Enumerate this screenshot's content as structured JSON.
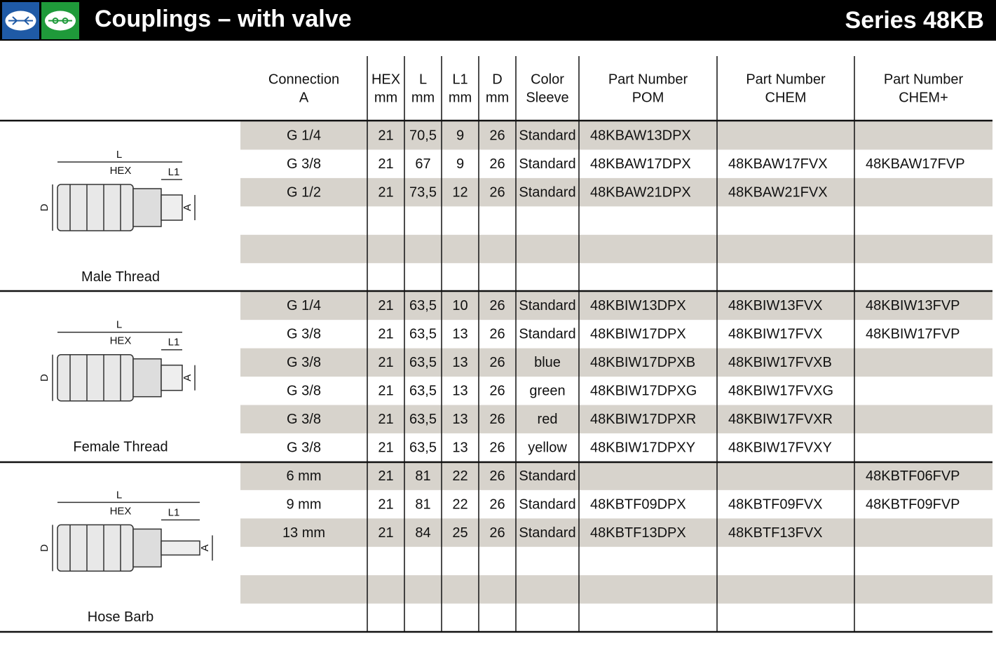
{
  "header": {
    "title": "Couplings – with valve",
    "series": "Series 48KB"
  },
  "table": {
    "columns": [
      [
        "Connection",
        "A"
      ],
      [
        "HEX",
        "mm"
      ],
      [
        "L",
        "mm"
      ],
      [
        "L1",
        "mm"
      ],
      [
        "D",
        "mm"
      ],
      [
        "Color",
        "Sleeve"
      ],
      [
        "Part Number",
        "POM"
      ],
      [
        "Part Number",
        "CHEM"
      ],
      [
        "Part Number",
        "CHEM+"
      ]
    ],
    "sections": [
      {
        "label": "Male Thread",
        "drawing": [
          "L",
          "HEX",
          "L1",
          "D",
          "A"
        ],
        "rows": [
          [
            "G 1/4",
            "21",
            "70,5",
            "9",
            "26",
            "Standard",
            "48KBAW13DPX",
            null,
            null
          ],
          [
            "G 3/8",
            "21",
            "67",
            "9",
            "26",
            "Standard",
            "48KBAW17DPX",
            "48KBAW17FVX",
            "48KBAW17FVP"
          ],
          [
            "G 1/2",
            "21",
            "73,5",
            "12",
            "26",
            "Standard",
            "48KBAW21DPX",
            "48KBAW21FVX",
            null
          ]
        ]
      },
      {
        "label": "Female Thread",
        "drawing": [
          "L",
          "HEX",
          "L1",
          "D",
          "A"
        ],
        "rows": [
          [
            "G 1/4",
            "21",
            "63,5",
            "10",
            "26",
            "Standard",
            "48KBIW13DPX",
            "48KBIW13FVX",
            "48KBIW13FVP"
          ],
          [
            "G 3/8",
            "21",
            "63,5",
            "13",
            "26",
            "Standard",
            "48KBIW17DPX",
            "48KBIW17FVX",
            "48KBIW17FVP"
          ],
          [
            "G 3/8",
            "21",
            "63,5",
            "13",
            "26",
            "blue",
            "48KBIW17DPXB",
            "48KBIW17FVXB",
            null
          ],
          [
            "G 3/8",
            "21",
            "63,5",
            "13",
            "26",
            "green",
            "48KBIW17DPXG",
            "48KBIW17FVXG",
            null
          ],
          [
            "G 3/8",
            "21",
            "63,5",
            "13",
            "26",
            "red",
            "48KBIW17DPXR",
            "48KBIW17FVXR",
            null
          ],
          [
            "G 3/8",
            "21",
            "63,5",
            "13",
            "26",
            "yellow",
            "48KBIW17DPXY",
            "48KBIW17FVXY",
            null
          ]
        ]
      },
      {
        "label": "Hose Barb",
        "drawing": [
          "L",
          "HEX",
          "L1",
          "D",
          "A"
        ],
        "rows": [
          [
            "6 mm",
            "21",
            "81",
            "22",
            "26",
            "Standard",
            null,
            null,
            "48KBTF06FVP"
          ],
          [
            "9 mm",
            "21",
            "81",
            "22",
            "26",
            "Standard",
            "48KBTF09DPX",
            "48KBTF09FVX",
            "48KBTF09FVP"
          ],
          [
            "13 mm",
            "21",
            "84",
            "25",
            "26",
            "Standard",
            "48KBTF13DPX",
            "48KBTF13FVX",
            null
          ]
        ]
      }
    ]
  }
}
